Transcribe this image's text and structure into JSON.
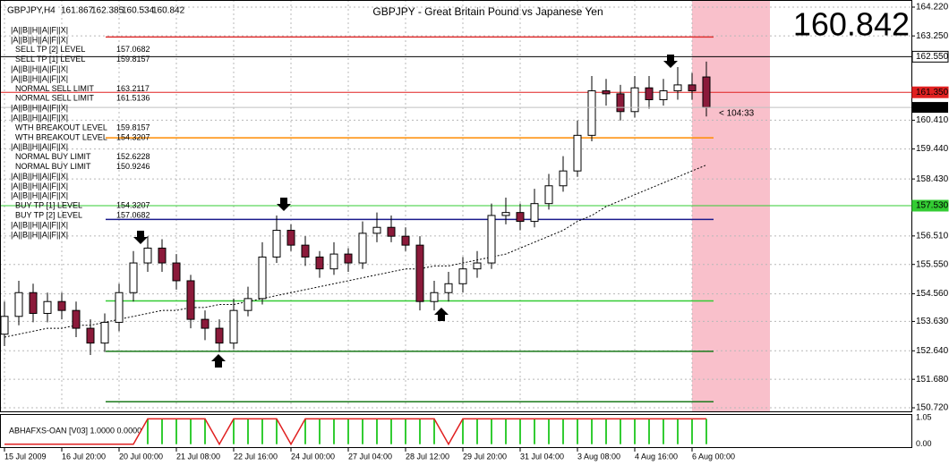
{
  "window": {
    "symbol": "GBPJPY,H4",
    "title": "GBPJPY - Great Britain Pound vs Japanese Yen",
    "timer": "< 104:33"
  },
  "chart_data": {
    "type": "candlestick",
    "categories": [
      "15 Jul 2009",
      null,
      null,
      null,
      "16 Jul 20:00",
      null,
      null,
      null,
      "20 Jul 00:00",
      null,
      null,
      null,
      "21 Jul 08:00",
      null,
      null,
      null,
      "22 Jul 16:00",
      null,
      null,
      null,
      "24 Jul 00:00",
      null,
      null,
      null,
      "27 Jul 04:00",
      null,
      null,
      null,
      "28 Jul 12:00",
      null,
      null,
      null,
      "29 Jul 20:00",
      null,
      null,
      null,
      "31 Jul 04:00",
      null,
      null,
      null,
      "3 Aug 08:00",
      null,
      null,
      null,
      "4 Aug 16:00",
      null,
      null,
      null,
      "6 Aug 00:00",
      null
    ],
    "open": [
      153.2,
      153.8,
      154.6,
      153.9,
      154.3,
      154.0,
      153.4,
      152.9,
      153.6,
      154.6,
      155.6,
      156.1,
      155.6,
      155.0,
      153.7,
      153.4,
      152.9,
      154.0,
      154.4,
      155.8,
      156.7,
      156.2,
      155.8,
      155.4,
      155.9,
      155.6,
      156.6,
      156.8,
      156.5,
      156.2,
      154.3,
      154.6,
      154.9,
      155.4,
      155.6,
      157.2,
      157.3,
      157.0,
      157.6,
      158.2,
      158.7,
      159.9,
      161.4,
      161.3,
      160.7,
      161.5,
      161.1,
      161.4,
      161.6,
      161.867
    ],
    "high": [
      154.3,
      155.0,
      154.9,
      154.6,
      154.6,
      154.3,
      153.7,
      153.9,
      154.9,
      156.0,
      156.5,
      156.4,
      155.9,
      155.2,
      154.0,
      153.7,
      154.4,
      154.8,
      156.3,
      157.2,
      156.9,
      156.5,
      156.0,
      156.3,
      156.1,
      157.0,
      157.3,
      157.2,
      156.8,
      156.5,
      155.0,
      155.3,
      155.8,
      156.0,
      157.6,
      157.8,
      157.6,
      158.1,
      158.6,
      159.2,
      160.4,
      161.9,
      161.8,
      161.6,
      161.9,
      161.9,
      161.8,
      162.2,
      162.0,
      162.385
    ],
    "low": [
      152.8,
      153.5,
      153.6,
      153.6,
      153.7,
      153.1,
      152.5,
      152.6,
      153.3,
      154.3,
      155.3,
      155.3,
      154.7,
      153.4,
      153.0,
      152.6,
      152.7,
      153.8,
      154.2,
      155.6,
      156.0,
      155.5,
      155.1,
      155.2,
      155.3,
      155.4,
      156.3,
      156.3,
      156.0,
      154.0,
      154.0,
      154.3,
      154.6,
      155.1,
      155.4,
      156.9,
      156.7,
      156.8,
      157.4,
      158.0,
      158.5,
      159.7,
      160.9,
      160.4,
      160.5,
      160.8,
      160.9,
      161.1,
      161.1,
      160.534
    ],
    "close": [
      153.8,
      154.6,
      153.9,
      154.3,
      154.0,
      153.4,
      152.9,
      153.6,
      154.6,
      155.6,
      156.1,
      155.6,
      155.0,
      153.7,
      153.4,
      152.9,
      154.0,
      154.4,
      155.8,
      156.7,
      156.2,
      155.8,
      155.4,
      155.9,
      155.6,
      156.6,
      156.8,
      156.5,
      156.2,
      154.3,
      154.6,
      154.9,
      155.4,
      155.6,
      157.2,
      157.3,
      157.0,
      157.6,
      158.2,
      158.7,
      159.9,
      161.4,
      161.3,
      160.7,
      161.5,
      161.1,
      161.4,
      161.6,
      161.4,
      160.842
    ],
    "bull_color": "#ffffff",
    "bear_color": "#8b1a3a",
    "ma": {
      "color": "#000000",
      "values": [
        153.1,
        153.2,
        153.3,
        153.4,
        153.4,
        153.5,
        153.5,
        153.6,
        153.7,
        153.8,
        153.9,
        154.0,
        154.0,
        154.1,
        154.1,
        154.2,
        154.2,
        154.3,
        154.4,
        154.5,
        154.6,
        154.7,
        154.8,
        154.9,
        155.0,
        155.1,
        155.2,
        155.3,
        155.4,
        155.4,
        155.5,
        155.5,
        155.6,
        155.7,
        155.8,
        155.9,
        156.1,
        156.3,
        156.5,
        156.7,
        157.0,
        157.2,
        157.5,
        157.7,
        157.9,
        158.1,
        158.3,
        158.5,
        158.7,
        158.9
      ]
    },
    "ylim": [
      150.6,
      164.46
    ],
    "yticks": [
      {
        "value": 164.22,
        "label": "164.220"
      },
      {
        "value": 163.25,
        "label": "163.250"
      },
      {
        "value": 160.41,
        "label": "160.410"
      },
      {
        "value": 159.44,
        "label": "159.440"
      },
      {
        "value": 158.43,
        "label": "158.430"
      },
      {
        "value": 156.51,
        "label": "156.510"
      },
      {
        "value": 155.55,
        "label": "155.550"
      },
      {
        "value": 154.56,
        "label": "154.560"
      },
      {
        "value": 153.63,
        "label": "153.630"
      },
      {
        "value": 152.64,
        "label": "152.640"
      },
      {
        "value": 151.68,
        "label": "151.680"
      },
      {
        "value": 150.72,
        "label": "150.720"
      }
    ],
    "grid": true,
    "price_lines": [
      {
        "value": 162.55,
        "label": "162.550",
        "color": "#000000",
        "label_bg": "#ffffff",
        "label_color": "#000000"
      },
      {
        "value": 161.35,
        "label": "161.350",
        "color": "#e02020",
        "label_bg": "#e02020",
        "label_color": "#ffffff"
      },
      {
        "value": 157.53,
        "label": "157.530",
        "color": "#33cc33",
        "label_bg": "#33cc33",
        "label_color": "#000000"
      }
    ],
    "current_color": "#7cfc00",
    "levels_panel": [
      {
        "text": "|A||B||H||A||F||X|"
      },
      {
        "text": "|A||B||H||A||F||X|"
      },
      {
        "label": "SELL TP [2] LEVEL",
        "value": 157.0682,
        "color": "#1a1a8c"
      },
      {
        "label": "SELL TP [1] LEVEL",
        "value": 159.8157,
        "color": "#ff8c00"
      },
      {
        "text": "|A||B||H||A||F||X|"
      },
      {
        "text": "|A||B||H||A||F||X|"
      },
      {
        "label": "NORMAL SELL LIMIT",
        "value": 163.2117,
        "color": "#e03030"
      },
      {
        "label": "NORMAL SELL LIMIT",
        "value": 161.5136
      },
      {
        "text": "|A||B||H||A||F||X|"
      },
      {
        "text": "|A||B||H||A||F||X|"
      },
      {
        "label": "WTH BREAKOUT LEVEL",
        "value": 159.8157
      },
      {
        "label": "WTH BREAKOUT LEVEL",
        "value": 154.3207,
        "color": "#33cc33"
      },
      {
        "text": "|A||B||H||A||F||X|"
      },
      {
        "label": "NORMAL BUY LIMIT",
        "value": 152.6228,
        "color": "#1b7a1b"
      },
      {
        "label": "NORMAL BUY LIMIT",
        "value": 150.9246,
        "color": "#1b7a1b"
      },
      {
        "text": "|A||B||H||A||F||X|"
      },
      {
        "text": "|A||B||H||A||F||X|"
      },
      {
        "text": "|A||B||H||A||F||X|"
      },
      {
        "label": "BUY TP [1] LEVEL",
        "value": 154.3207
      },
      {
        "label": "BUY TP [2] LEVEL",
        "value": 157.0682
      },
      {
        "text": "|A||B||H||A||F||X|"
      },
      {
        "text": "|A||B||H||A||F||X|"
      }
    ],
    "indicator": {
      "label": "ABHAFXS-OAN [V03] 1.0000 0.0000",
      "line_color": "#e02020",
      "bar_color": "#33cc33",
      "values": [
        0,
        0,
        0,
        0,
        0,
        0,
        0,
        0,
        0,
        0,
        1,
        1,
        1,
        1,
        1,
        0,
        1,
        1,
        1,
        1,
        0,
        1,
        1,
        1,
        1,
        1,
        1,
        1,
        1,
        1,
        1,
        0,
        1,
        1,
        1,
        1,
        1,
        1,
        1,
        1,
        1,
        1,
        1,
        1,
        1,
        1,
        1,
        1,
        1,
        1
      ],
      "ylim": [
        -0.08,
        1.12
      ],
      "yticks": [
        1.05,
        {
          "value": 0,
          "label": "0.00"
        }
      ]
    }
  }
}
